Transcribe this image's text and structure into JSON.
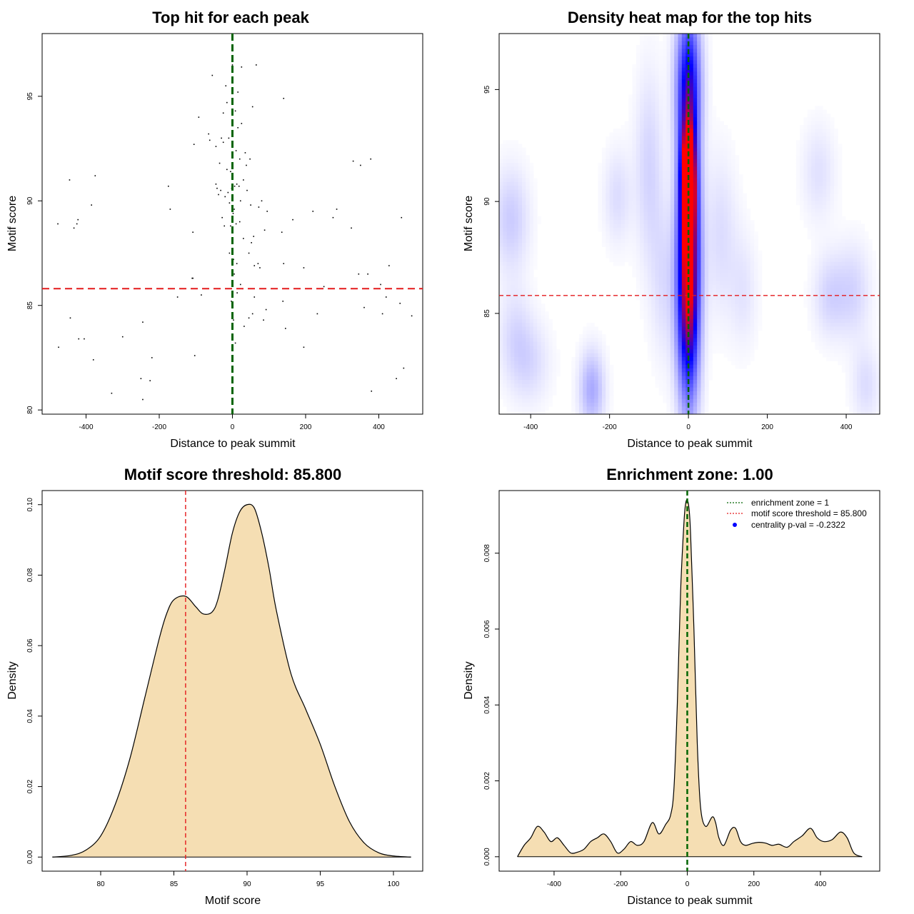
{
  "chart_data": [
    {
      "id": "p1",
      "type": "scatter",
      "title": "Top hit for each peak",
      "xlabel": "Distance to peak summit",
      "ylabel": "Motif score",
      "xlim": [
        -520,
        520
      ],
      "ylim": [
        79.8,
        98
      ],
      "xticks": [
        -400,
        -200,
        0,
        200,
        400
      ],
      "yticks": [
        80,
        85,
        90,
        95
      ],
      "vline": {
        "value": 0,
        "color": "#006400"
      },
      "hline": {
        "value": 85.8,
        "color": "#e41a1c"
      },
      "points": [
        [
          -477,
          88.9
        ],
        [
          -475,
          83.0
        ],
        [
          -445,
          91.0
        ],
        [
          -443,
          84.4
        ],
        [
          -433,
          88.7
        ],
        [
          -425,
          88.9
        ],
        [
          -422,
          89.1
        ],
        [
          -420,
          83.4
        ],
        [
          -405,
          83.4
        ],
        [
          -385,
          89.8
        ],
        [
          -375,
          91.2
        ],
        [
          -380,
          82.4
        ],
        [
          -330,
          80.8
        ],
        [
          -300,
          83.5
        ],
        [
          -250,
          81.5
        ],
        [
          -245,
          80.5
        ],
        [
          -245,
          84.2
        ],
        [
          -225,
          81.4
        ],
        [
          -220,
          82.5
        ],
        [
          -175,
          90.7
        ],
        [
          -170,
          89.6
        ],
        [
          -150,
          85.4
        ],
        [
          -110,
          86.3
        ],
        [
          -108,
          86.3
        ],
        [
          -108,
          88.5
        ],
        [
          -105,
          92.7
        ],
        [
          -103,
          82.6
        ],
        [
          -92,
          94.0
        ],
        [
          -85,
          85.5
        ],
        [
          -65,
          93.2
        ],
        [
          -62,
          92.9
        ],
        [
          -55,
          96.0
        ],
        [
          -45,
          92.6
        ],
        [
          -45,
          90.8
        ],
        [
          -42,
          90.6
        ],
        [
          -38,
          90.3
        ],
        [
          -35,
          91.8
        ],
        [
          -32,
          90.5
        ],
        [
          -30,
          93.0
        ],
        [
          -28,
          89.2
        ],
        [
          -25,
          92.8
        ],
        [
          -25,
          94.2
        ],
        [
          -22,
          88.8
        ],
        [
          -20,
          90.2
        ],
        [
          -18,
          95.5
        ],
        [
          -15,
          94.7
        ],
        [
          -15,
          91.5
        ],
        [
          -12,
          90.4
        ],
        [
          -10,
          93.0
        ],
        [
          -8,
          89.9
        ],
        [
          -8,
          87.5
        ],
        [
          -5,
          91.4
        ],
        [
          -5,
          88.8
        ],
        [
          -3,
          85.2
        ],
        [
          -2,
          90.6
        ],
        [
          0,
          96.5
        ],
        [
          0,
          95.8
        ],
        [
          2,
          89.4
        ],
        [
          3,
          87.2
        ],
        [
          3,
          84.3
        ],
        [
          5,
          89.6
        ],
        [
          5,
          86.5
        ],
        [
          6,
          90.7
        ],
        [
          8,
          94.3
        ],
        [
          8,
          83.2
        ],
        [
          10,
          92.4
        ],
        [
          10,
          88.9
        ],
        [
          12,
          90.8
        ],
        [
          12,
          87.0
        ],
        [
          13,
          85.6
        ],
        [
          15,
          95.2
        ],
        [
          15,
          93.5
        ],
        [
          18,
          90.7
        ],
        [
          20,
          92.0
        ],
        [
          20,
          89.0
        ],
        [
          22,
          90.0
        ],
        [
          22,
          86.0
        ],
        [
          25,
          96.4
        ],
        [
          25,
          93.7
        ],
        [
          28,
          85.8
        ],
        [
          30,
          91.0
        ],
        [
          30,
          88.2
        ],
        [
          32,
          84.0
        ],
        [
          35,
          92.3
        ],
        [
          38,
          91.7
        ],
        [
          40,
          90.5
        ],
        [
          45,
          87.5
        ],
        [
          45,
          84.4
        ],
        [
          48,
          92.0
        ],
        [
          50,
          89.8
        ],
        [
          52,
          88.0
        ],
        [
          55,
          94.5
        ],
        [
          55,
          84.6
        ],
        [
          58,
          88.3
        ],
        [
          60,
          86.9
        ],
        [
          60,
          85.4
        ],
        [
          65,
          96.5
        ],
        [
          70,
          87.0
        ],
        [
          72,
          89.7
        ],
        [
          75,
          86.8
        ],
        [
          80,
          90.0
        ],
        [
          85,
          84.3
        ],
        [
          88,
          88.6
        ],
        [
          92,
          84.8
        ],
        [
          95,
          89.5
        ],
        [
          135,
          88.5
        ],
        [
          138,
          85.2
        ],
        [
          140,
          87.0
        ],
        [
          140,
          94.9
        ],
        [
          145,
          83.9
        ],
        [
          165,
          89.1
        ],
        [
          195,
          86.8
        ],
        [
          195,
          83.0
        ],
        [
          220,
          89.5
        ],
        [
          232,
          84.6
        ],
        [
          250,
          85.9
        ],
        [
          275,
          89.2
        ],
        [
          285,
          89.6
        ],
        [
          325,
          88.7
        ],
        [
          330,
          91.9
        ],
        [
          345,
          86.5
        ],
        [
          350,
          91.7
        ],
        [
          360,
          84.9
        ],
        [
          370,
          86.5
        ],
        [
          378,
          92.0
        ],
        [
          380,
          80.9
        ],
        [
          405,
          86.0
        ],
        [
          410,
          84.6
        ],
        [
          420,
          85.4
        ],
        [
          428,
          86.9
        ],
        [
          448,
          81.5
        ],
        [
          458,
          85.1
        ],
        [
          462,
          89.2
        ],
        [
          468,
          82.0
        ],
        [
          490,
          84.5
        ]
      ]
    },
    {
      "id": "p2",
      "type": "heatmap",
      "title": "Density heat map for the top hits",
      "xlabel": "Distance to peak summit",
      "ylabel": "Motif score",
      "xlim": [
        -480,
        485
      ],
      "ylim": [
        80.5,
        97.5
      ],
      "xticks": [
        -400,
        -200,
        0,
        200,
        400
      ],
      "yticks": [
        85,
        90,
        95
      ],
      "vline": {
        "value": 0,
        "color": "#006400"
      },
      "hline": {
        "value": 85.8,
        "color": "#e41a1c"
      },
      "hotspots": [
        {
          "x": 0,
          "y": 90.8,
          "sx": 11,
          "sy": 1.5,
          "w": 1.0
        },
        {
          "x": 0,
          "y": 89.5,
          "sx": 18,
          "sy": 3.8,
          "w": 0.85
        },
        {
          "x": 0,
          "y": 85.0,
          "sx": 20,
          "sy": 3.0,
          "w": 0.55
        },
        {
          "x": 0,
          "y": 95.5,
          "sx": 22,
          "sy": 2.2,
          "w": 0.45
        },
        {
          "x": -450,
          "y": 89.2,
          "sx": 32,
          "sy": 1.6,
          "w": 0.12
        },
        {
          "x": -440,
          "y": 84.0,
          "sx": 30,
          "sy": 1.5,
          "w": 0.08
        },
        {
          "x": -400,
          "y": 82.8,
          "sx": 35,
          "sy": 1.3,
          "w": 0.08
        },
        {
          "x": -245,
          "y": 81.6,
          "sx": 22,
          "sy": 1.2,
          "w": 0.2
        },
        {
          "x": -180,
          "y": 90.2,
          "sx": 25,
          "sy": 1.5,
          "w": 0.08
        },
        {
          "x": -100,
          "y": 91.5,
          "sx": 25,
          "sy": 3.0,
          "w": 0.1
        },
        {
          "x": -60,
          "y": 86.5,
          "sx": 25,
          "sy": 2.5,
          "w": 0.08
        },
        {
          "x": 80,
          "y": 88.5,
          "sx": 30,
          "sy": 2.5,
          "w": 0.08
        },
        {
          "x": 140,
          "y": 86.0,
          "sx": 25,
          "sy": 1.8,
          "w": 0.06
        },
        {
          "x": 330,
          "y": 91.3,
          "sx": 30,
          "sy": 1.5,
          "w": 0.07
        },
        {
          "x": 360,
          "y": 85.8,
          "sx": 30,
          "sy": 1.3,
          "w": 0.1
        },
        {
          "x": 420,
          "y": 86.0,
          "sx": 30,
          "sy": 1.5,
          "w": 0.09
        },
        {
          "x": 450,
          "y": 81.8,
          "sx": 25,
          "sy": 1.2,
          "w": 0.08
        }
      ]
    },
    {
      "id": "p3",
      "type": "area",
      "title": "Motif score threshold: 85.800",
      "xlabel": "Motif score",
      "ylabel": "Density",
      "xlim": [
        76,
        102
      ],
      "ylim": [
        -0.004,
        0.104
      ],
      "xticks": [
        80,
        85,
        90,
        95,
        100
      ],
      "yticks": [
        0.0,
        0.02,
        0.04,
        0.06,
        0.08,
        0.1
      ],
      "ytick_labels": [
        "0.00",
        "0.02",
        "0.04",
        "0.06",
        "0.08",
        "0.10"
      ],
      "vline": {
        "value": 85.8,
        "color": "#e41a1c"
      },
      "fill": "#f5deb3",
      "x": [
        76.7,
        78,
        79,
        80,
        81,
        82,
        83,
        84,
        84.5,
        85,
        85.8,
        86.5,
        87,
        87.6,
        88,
        88.5,
        89,
        89.5,
        90,
        90.5,
        91,
        91.5,
        92,
        93,
        94,
        95,
        96,
        97,
        98,
        99,
        100,
        101.2
      ],
      "y": [
        0.0,
        0.0005,
        0.002,
        0.006,
        0.015,
        0.028,
        0.045,
        0.062,
        0.069,
        0.073,
        0.074,
        0.071,
        0.069,
        0.0695,
        0.073,
        0.082,
        0.092,
        0.098,
        0.1,
        0.099,
        0.092,
        0.082,
        0.07,
        0.052,
        0.042,
        0.032,
        0.02,
        0.01,
        0.004,
        0.0012,
        0.0003,
        0.0
      ]
    },
    {
      "id": "p4",
      "type": "area",
      "title": "Enrichment zone: 1.00",
      "xlabel": "Distance to peak summit",
      "ylabel": "Density",
      "xlim": [
        -565,
        578
      ],
      "ylim": [
        -0.00038,
        0.00965
      ],
      "xticks": [
        -400,
        -200,
        0,
        200,
        400
      ],
      "yticks": [
        0.0,
        0.002,
        0.004,
        0.006,
        0.008
      ],
      "ytick_labels": [
        "0.000",
        "0.002",
        "0.004",
        "0.006",
        "0.008"
      ],
      "vline": {
        "value": 0,
        "color": "#006400"
      },
      "fill": "#f5deb3",
      "x": [
        -510,
        -490,
        -470,
        -450,
        -430,
        -410,
        -390,
        -370,
        -350,
        -330,
        -310,
        -290,
        -270,
        -250,
        -230,
        -210,
        -190,
        -170,
        -150,
        -130,
        -105,
        -85,
        -65,
        -50,
        -40,
        -30,
        -20,
        -10,
        -5,
        0,
        5,
        10,
        20,
        30,
        40,
        55,
        75,
        85,
        95,
        110,
        130,
        145,
        160,
        175,
        195,
        215,
        235,
        255,
        275,
        300,
        320,
        345,
        370,
        390,
        410,
        435,
        460,
        480,
        500,
        525
      ],
      "y": [
        0.0,
        0.0003,
        0.0005,
        0.0008,
        0.00065,
        0.0004,
        0.0005,
        0.0003,
        0.0001,
        0.00012,
        0.0002,
        0.0004,
        0.0005,
        0.0006,
        0.0004,
        0.0001,
        0.0002,
        0.0004,
        0.0003,
        0.0004,
        0.0009,
        0.0006,
        0.00085,
        0.0011,
        0.0018,
        0.004,
        0.007,
        0.0088,
        0.0093,
        0.0094,
        0.0092,
        0.0085,
        0.006,
        0.003,
        0.0013,
        0.0008,
        0.00105,
        0.0009,
        0.0005,
        0.0003,
        0.0007,
        0.00075,
        0.0004,
        0.0003,
        0.00035,
        0.00038,
        0.00036,
        0.0003,
        0.00033,
        0.00025,
        0.0004,
        0.00055,
        0.00075,
        0.0005,
        0.0004,
        0.00045,
        0.00065,
        0.0005,
        0.0001,
        0.0
      ]
    }
  ],
  "legend": {
    "items": [
      {
        "label": "enrichment zone = 1",
        "color": "#006400",
        "kind": "line"
      },
      {
        "label": "motif score threshold = 85.800",
        "color": "#e41a1c",
        "kind": "line"
      },
      {
        "label": "centrality p-val = -0.2322",
        "color": "#0000ff",
        "kind": "point"
      }
    ]
  }
}
